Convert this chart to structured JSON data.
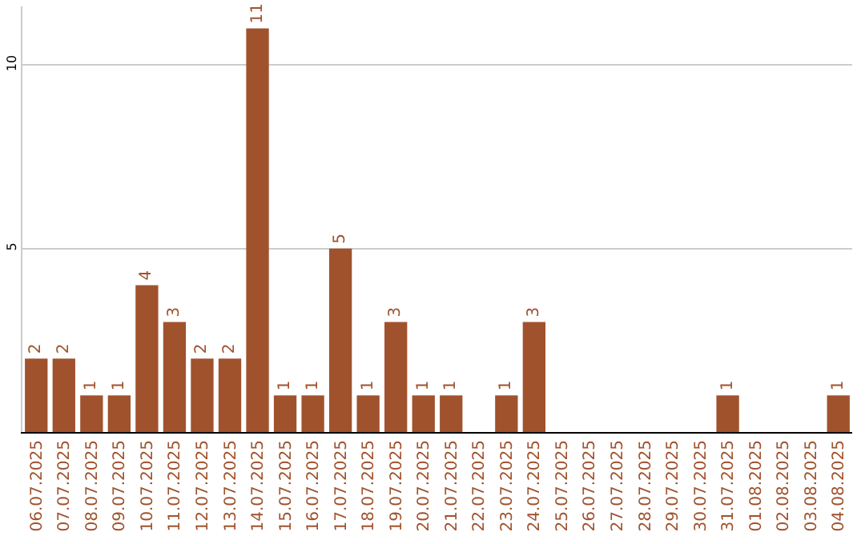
{
  "chart_data": {
    "type": "bar",
    "categories": [
      "06.07.2025",
      "07.07.2025",
      "08.07.2025",
      "09.07.2025",
      "10.07.2025",
      "11.07.2025",
      "12.07.2025",
      "13.07.2025",
      "14.07.2025",
      "15.07.2025",
      "16.07.2025",
      "17.07.2025",
      "18.07.2025",
      "19.07.2025",
      "20.07.2025",
      "21.07.2025",
      "22.07.2025",
      "23.07.2025",
      "24.07.2025",
      "25.07.2025",
      "26.07.2025",
      "27.07.2025",
      "28.07.2025",
      "29.07.2025",
      "30.07.2025",
      "31.07.2025",
      "01.08.2025",
      "02.08.2025",
      "03.08.2025",
      "04.08.2025"
    ],
    "values": [
      2,
      2,
      1,
      1,
      4,
      3,
      2,
      2,
      11,
      1,
      1,
      5,
      1,
      3,
      1,
      1,
      null,
      1,
      3,
      null,
      null,
      null,
      null,
      null,
      null,
      1,
      null,
      null,
      null,
      1
    ],
    "color": "#a0522d",
    "ylim": [
      0,
      11.6
    ],
    "yticks": [
      5,
      10
    ],
    "grid": "y",
    "data_labels": true
  }
}
